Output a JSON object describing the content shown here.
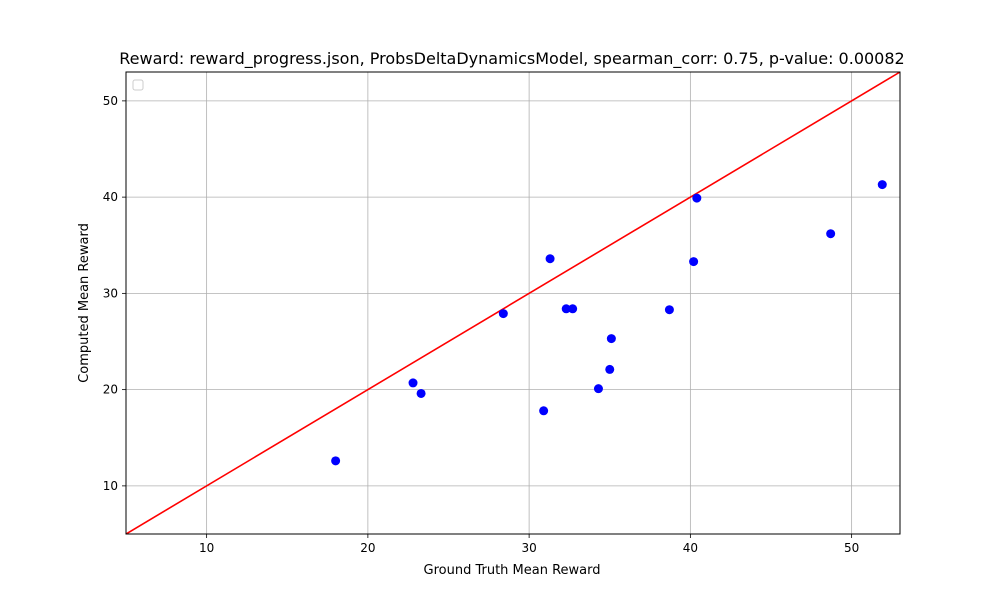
{
  "chart_data": {
    "type": "scatter",
    "title": "Reward: reward_progress.json, ProbsDeltaDynamicsModel, spearman_corr: 0.75, p-value: 0.00082",
    "xlabel": "Ground Truth Mean Reward",
    "ylabel": "Computed Mean Reward",
    "xlim": [
      5,
      53
    ],
    "ylim": [
      5,
      53
    ],
    "xticks": [
      10,
      20,
      30,
      40,
      50
    ],
    "yticks": [
      10,
      20,
      30,
      40,
      50
    ],
    "grid": true,
    "legend": "top-left, empty",
    "point_color": "#0000ff",
    "line_color": "#ff0000",
    "reference_line": {
      "type": "identity",
      "from": [
        5,
        5
      ],
      "to": [
        53,
        53
      ]
    },
    "series": [
      {
        "points": [
          [
            18.0,
            12.6
          ],
          [
            22.8,
            20.7
          ],
          [
            23.3,
            19.6
          ],
          [
            28.4,
            27.9
          ],
          [
            30.9,
            17.8
          ],
          [
            31.3,
            33.6
          ],
          [
            32.3,
            28.4
          ],
          [
            32.7,
            28.4
          ],
          [
            34.3,
            20.1
          ],
          [
            35.0,
            22.1
          ],
          [
            35.1,
            25.3
          ],
          [
            38.7,
            28.3
          ],
          [
            40.2,
            33.3
          ],
          [
            40.4,
            39.9
          ],
          [
            48.7,
            36.2
          ],
          [
            51.9,
            41.3
          ]
        ]
      }
    ]
  }
}
